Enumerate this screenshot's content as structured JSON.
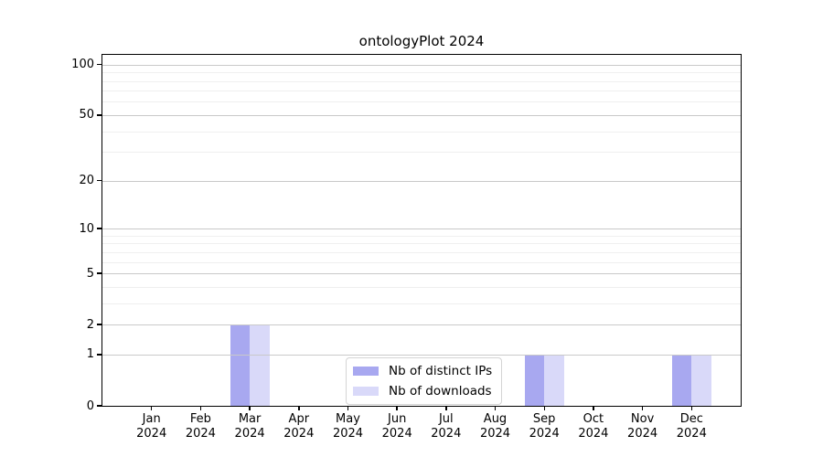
{
  "title": "ontologyPlot 2024",
  "chart_data": {
    "type": "bar",
    "title": "ontologyPlot 2024",
    "categories": [
      "Jan 2024",
      "Feb 2024",
      "Mar 2024",
      "Apr 2024",
      "May 2024",
      "Jun 2024",
      "Jul 2024",
      "Aug 2024",
      "Sep 2024",
      "Oct 2024",
      "Nov 2024",
      "Dec 2024"
    ],
    "series": [
      {
        "name": "Nb of distinct IPs",
        "color": "#a8a8f0",
        "values": [
          0,
          0,
          2,
          0,
          0,
          0,
          0,
          0,
          1,
          0,
          0,
          1
        ]
      },
      {
        "name": "Nb of downloads",
        "color": "#d9d9f9",
        "values": [
          0,
          0,
          2,
          0,
          0,
          0,
          0,
          0,
          1,
          0,
          0,
          1
        ]
      }
    ],
    "xlabel": "",
    "ylabel": "",
    "y_scale": "log10(value+1)",
    "y_major_ticks": [
      0,
      1,
      2,
      5,
      10,
      20,
      50,
      100
    ],
    "y_minor_ticks": [
      3,
      4,
      6,
      7,
      8,
      9,
      30,
      40,
      60,
      70,
      80,
      90
    ],
    "y_top_value": 113,
    "grid": "horizontal major+minor",
    "legend_position": "lower center"
  },
  "colors": {
    "background": "#ffffff",
    "spine": "#000000",
    "major_grid": "#c9c9c9",
    "minor_grid": "#efefef",
    "text": "#000000",
    "legend_border": "#d4d4d4"
  }
}
